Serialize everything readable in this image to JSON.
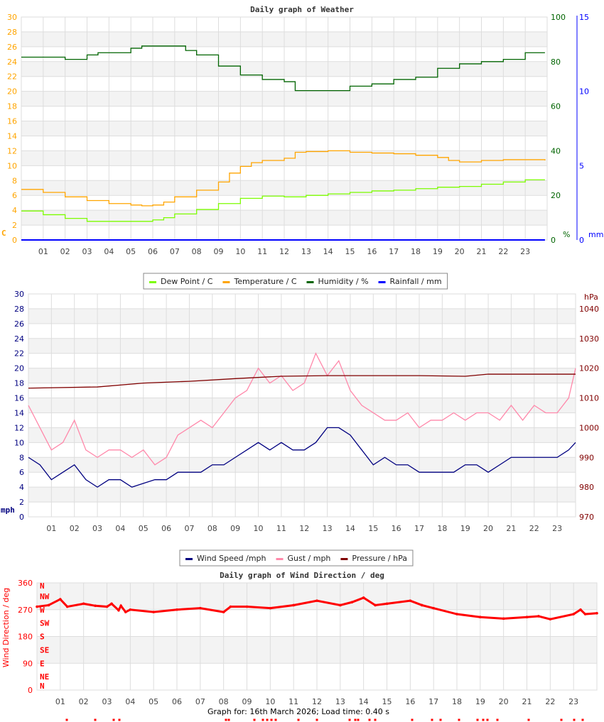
{
  "footer": "Graph for: 16th March 2026; Load time: 0.40 s",
  "chart_data": [
    {
      "type": "line",
      "title": "Daily graph of Weather",
      "x_ticks": [
        "01",
        "02",
        "03",
        "04",
        "05",
        "06",
        "07",
        "08",
        "09",
        "10",
        "11",
        "12",
        "13",
        "14",
        "15",
        "16",
        "17",
        "18",
        "19",
        "20",
        "21",
        "22",
        "23"
      ],
      "xlim": [
        0,
        24
      ],
      "grid": true,
      "legend_position": "bottom",
      "axes": {
        "left": {
          "unit": "C",
          "range": [
            0,
            30
          ],
          "ticks": [
            0,
            2,
            4,
            6,
            8,
            10,
            12,
            14,
            16,
            18,
            20,
            22,
            24,
            26,
            28,
            30
          ],
          "color": "#ffa500"
        },
        "right1": {
          "unit": "%",
          "range": [
            0,
            100
          ],
          "ticks": [
            0,
            20,
            40,
            60,
            80,
            100
          ],
          "color": "#006400"
        },
        "right2": {
          "unit": "mm",
          "range": [
            0,
            15
          ],
          "ticks": [
            0,
            5,
            10,
            15
          ],
          "color": "#0000ff"
        }
      },
      "series": [
        {
          "name": "Dew Point / C",
          "axis": "left",
          "color": "#7cfc00",
          "x": [
            0,
            1,
            2,
            3,
            4,
            5,
            6,
            6.5,
            7,
            8,
            9,
            10,
            11,
            12,
            13,
            14,
            15,
            16,
            17,
            18,
            19,
            20,
            21,
            22,
            23,
            23.9
          ],
          "y": [
            3.9,
            3.4,
            2.9,
            2.5,
            2.5,
            2.5,
            2.7,
            3.0,
            3.5,
            4.1,
            4.9,
            5.6,
            5.9,
            5.8,
            6.0,
            6.2,
            6.4,
            6.6,
            6.7,
            6.9,
            7.1,
            7.2,
            7.5,
            7.8,
            8.1,
            8.1
          ]
        },
        {
          "name": "Temperature / C",
          "axis": "left",
          "color": "#ffa500",
          "x": [
            0,
            1,
            2,
            3,
            4,
            5,
            5.5,
            6,
            6.5,
            7,
            8,
            9,
            9.5,
            10,
            10.5,
            11,
            12,
            12.5,
            13,
            14,
            15,
            16,
            17,
            18,
            19,
            19.5,
            20,
            21,
            22,
            23,
            23.9
          ],
          "y": [
            6.8,
            6.4,
            5.8,
            5.3,
            4.9,
            4.7,
            4.6,
            4.7,
            5.1,
            5.8,
            6.7,
            7.8,
            9.0,
            9.9,
            10.4,
            10.7,
            11.0,
            11.8,
            11.9,
            12.0,
            11.8,
            11.7,
            11.6,
            11.4,
            11.1,
            10.7,
            10.5,
            10.7,
            10.8,
            10.8,
            10.7
          ]
        },
        {
          "name": "Humidity / %",
          "axis": "right1",
          "color": "#006400",
          "x": [
            0,
            1,
            2,
            3,
            3.5,
            4,
            5,
            5.5,
            6,
            7,
            7.5,
            8,
            9,
            10,
            11,
            12,
            12.5,
            13,
            14,
            15,
            16,
            17,
            18,
            19,
            20,
            21,
            22,
            23,
            23.9
          ],
          "y": [
            82,
            82,
            81,
            83,
            84,
            84,
            86,
            87,
            87,
            87,
            85,
            83,
            78,
            74,
            72,
            71,
            67,
            67,
            67,
            69,
            70,
            72,
            73,
            77,
            79,
            80,
            81,
            84,
            84
          ]
        },
        {
          "name": "Rainfall / mm",
          "axis": "right2",
          "color": "#0000ff",
          "x": [
            0,
            23.9
          ],
          "y": [
            0,
            0
          ]
        }
      ]
    },
    {
      "type": "line",
      "title": "",
      "x_ticks": [
        "01",
        "02",
        "03",
        "04",
        "05",
        "06",
        "07",
        "08",
        "09",
        "10",
        "11",
        "12",
        "13",
        "14",
        "15",
        "16",
        "17",
        "18",
        "19",
        "20",
        "21",
        "22",
        "23"
      ],
      "xlim": [
        0,
        23.8
      ],
      "grid": true,
      "legend_position": "bottom",
      "axes": {
        "left": {
          "unit": "mph",
          "range": [
            0,
            30
          ],
          "ticks": [
            0,
            2,
            4,
            6,
            8,
            10,
            12,
            14,
            16,
            18,
            20,
            22,
            24,
            26,
            28,
            30
          ],
          "color": "#000080"
        },
        "right1": {
          "unit": "hPa",
          "range": [
            970,
            1045
          ],
          "ticks": [
            970,
            980,
            990,
            1000,
            1010,
            1020,
            1030,
            1040
          ],
          "color": "#800000"
        }
      },
      "series": [
        {
          "name": "Wind Speed /mph",
          "axis": "left",
          "color": "#000080",
          "x": [
            0,
            0.5,
            1,
            1.5,
            2,
            2.5,
            3,
            3.5,
            4,
            4.5,
            5,
            5.5,
            6,
            6.5,
            7,
            7.5,
            8,
            8.5,
            9,
            9.5,
            10,
            10.5,
            11,
            11.5,
            12,
            12.5,
            13,
            13.5,
            14,
            14.5,
            15,
            15.5,
            16,
            16.5,
            17,
            17.5,
            18,
            18.5,
            19,
            19.5,
            20,
            20.5,
            21,
            21.5,
            22,
            22.5,
            23,
            23.5,
            23.8
          ],
          "y": [
            8,
            7,
            5,
            6,
            7,
            5,
            4,
            5,
            5,
            4,
            4.5,
            5,
            5,
            6,
            6,
            6,
            7,
            7,
            8,
            9,
            10,
            9,
            10,
            9,
            9,
            10,
            12,
            12,
            11,
            9,
            7,
            8,
            7,
            7,
            6,
            6,
            6,
            6,
            7,
            7,
            6,
            7,
            8,
            8,
            8,
            8,
            8,
            9,
            10
          ]
        },
        {
          "name": "Gust / mph",
          "axis": "left",
          "color": "#ff88aa",
          "x": [
            0,
            0.5,
            1,
            1.5,
            2,
            2.5,
            3,
            3.5,
            4,
            4.5,
            5,
            5.5,
            6,
            6.5,
            7,
            7.5,
            8,
            8.5,
            9,
            9.5,
            10,
            10.5,
            11,
            11.5,
            12,
            12.5,
            13,
            13.5,
            14,
            14.5,
            15,
            15.5,
            16,
            16.5,
            17,
            17.5,
            18,
            18.5,
            19,
            19.5,
            20,
            20.5,
            21,
            21.5,
            22,
            22.5,
            23,
            23.5,
            23.8
          ],
          "y": [
            15,
            12,
            9,
            10,
            13,
            9,
            8,
            9,
            9,
            8,
            9,
            7,
            8,
            11,
            12,
            13,
            12,
            14,
            16,
            17,
            20,
            18,
            19,
            17,
            18,
            22,
            19,
            21,
            17,
            15,
            14,
            13,
            13,
            14,
            12,
            13,
            13,
            14,
            13,
            14,
            14,
            13,
            15,
            13,
            15,
            14,
            14,
            16,
            20
          ]
        },
        {
          "name": "Pressure / hPa",
          "axis": "right1",
          "color": "#800000",
          "x": [
            0,
            3,
            5,
            7,
            9,
            11,
            13,
            15,
            17,
            19,
            20,
            22,
            23.8
          ],
          "y": [
            1013.3,
            1013.7,
            1015.0,
            1015.6,
            1016.5,
            1017.3,
            1017.5,
            1017.5,
            1017.5,
            1017.3,
            1018.0,
            1018.0,
            1018.0
          ]
        }
      ]
    },
    {
      "type": "scatter",
      "title": "Daily graph of Wind Direction / deg",
      "ylabel": "Wind Direction / deg",
      "x_ticks": [
        "01",
        "02",
        "03",
        "04",
        "05",
        "06",
        "07",
        "08",
        "09",
        "10",
        "11",
        "12",
        "13",
        "14",
        "15",
        "16",
        "17",
        "18",
        "19",
        "20",
        "21",
        "22",
        "23"
      ],
      "xlim": [
        0,
        24
      ],
      "ylim": [
        0,
        360
      ],
      "y_ticks": [
        0,
        90,
        180,
        270,
        360
      ],
      "compass_labels": [
        "N",
        "NE",
        "E",
        "SE",
        "S",
        "SW",
        "W",
        "NW",
        "N"
      ],
      "grid": true,
      "color": "#ff0000",
      "series": [
        {
          "axis": "left",
          "color": "#ff0000",
          "x": [
            0,
            0.5,
            1,
            1.3,
            2,
            2.5,
            3,
            3.2,
            3.5,
            3.6,
            3.8,
            4,
            5,
            6,
            7,
            8,
            8.3,
            9,
            10,
            11,
            12,
            13,
            13.5,
            14,
            14.5,
            15,
            16,
            16.5,
            17,
            18,
            19,
            20,
            21,
            21.5,
            22,
            23,
            23.3,
            23.5,
            24
          ],
          "y": [
            280,
            285,
            305,
            280,
            290,
            283,
            280,
            290,
            268,
            283,
            262,
            270,
            262,
            270,
            275,
            262,
            280,
            280,
            275,
            285,
            300,
            285,
            295,
            310,
            285,
            290,
            300,
            285,
            275,
            255,
            245,
            240,
            245,
            248,
            238,
            255,
            270,
            255,
            258
          ]
        }
      ]
    }
  ],
  "legends": [
    {
      "items": [
        {
          "label": "Dew Point / C",
          "color": "#7cfc00"
        },
        {
          "label": "Temperature / C",
          "color": "#ffa500"
        },
        {
          "label": "Humidity / %",
          "color": "#006400"
        },
        {
          "label": "Rainfall / mm",
          "color": "#0000ff"
        }
      ]
    },
    {
      "items": [
        {
          "label": "Wind Speed /mph",
          "color": "#000080"
        },
        {
          "label": "Gust / mph",
          "color": "#ff88aa"
        },
        {
          "label": "Pressure / hPa",
          "color": "#800000"
        }
      ]
    }
  ]
}
